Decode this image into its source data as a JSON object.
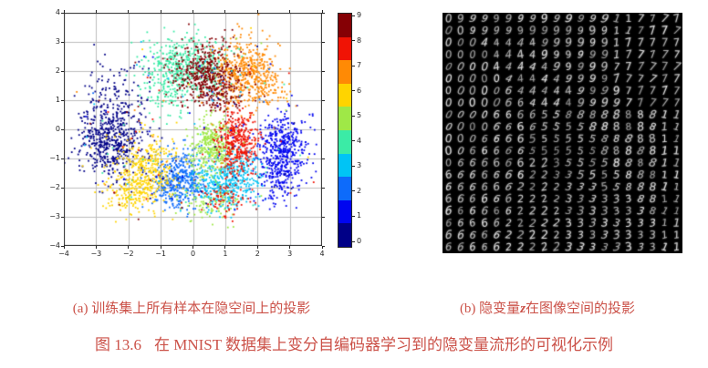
{
  "figure": {
    "caption_color": "#CB5148",
    "subcaption_a": "(a) 训练集上所有样本在隐空间上的投影",
    "subcaption_b_prefix": "(b) 隐变量",
    "subcaption_b_var": "z",
    "subcaption_b_suffix": "在图像空间的投影",
    "main_caption_label": "图 13.6",
    "main_caption_text": "在 MNIST 数据集上变分自编码器学习到的隐变量流形的可视化示例"
  },
  "chart_data": [
    {
      "type": "scatter",
      "title": "",
      "xlabel": "",
      "ylabel": "",
      "xlim": [
        -4,
        4
      ],
      "ylim": [
        -4,
        4
      ],
      "grid": true,
      "grid_color": "#bcbcbc",
      "spine_color": "#262626",
      "xticks": [
        "−4",
        "−3",
        "−2",
        "−1",
        "0",
        "1",
        "2",
        "3",
        "4"
      ],
      "yticks": [
        "−4",
        "−3",
        "−2",
        "−1",
        "0",
        "1",
        "2",
        "3",
        "4"
      ],
      "point_size": 1.8,
      "salt_fraction": 0.05,
      "palette": [
        "#000087",
        "#0005F0",
        "#0D6BFB",
        "#00C4F5",
        "#3BEBA6",
        "#9FE847",
        "#FFD400",
        "#FF8A05",
        "#F01305",
        "#850005"
      ],
      "colorbar": {
        "ticks": [
          "0",
          "1",
          "2",
          "3",
          "4",
          "5",
          "6",
          "7",
          "8",
          "9"
        ],
        "orientation": "vertical",
        "position": "right"
      },
      "classes": [
        {
          "label": "0",
          "color_index": 0,
          "clusters": [
            {
              "cx": -2.55,
              "cy": -0.45,
              "sx": 0.5,
              "sy": 0.6,
              "n": 480
            },
            {
              "cx": -2.4,
              "cy": 1.0,
              "sx": 0.5,
              "sy": 0.65,
              "n": 150
            }
          ]
        },
        {
          "label": "1",
          "color_index": 1,
          "clusters": [
            {
              "cx": 2.8,
              "cy": -0.65,
              "sx": 0.38,
              "sy": 0.6,
              "n": 420
            },
            {
              "cx": 2.6,
              "cy": -1.8,
              "sx": 0.35,
              "sy": 0.45,
              "n": 120
            }
          ]
        },
        {
          "label": "2",
          "color_index": 2,
          "clusters": [
            {
              "cx": -0.45,
              "cy": -1.75,
              "sx": 0.42,
              "sy": 0.5,
              "n": 430
            }
          ]
        },
        {
          "label": "3",
          "color_index": 3,
          "clusters": [
            {
              "cx": 0.95,
              "cy": -1.8,
              "sx": 0.5,
              "sy": 0.45,
              "n": 380
            },
            {
              "cx": 1.6,
              "cy": -1.3,
              "sx": 0.3,
              "sy": 0.4,
              "n": 80
            }
          ]
        },
        {
          "label": "4",
          "color_index": 4,
          "clusters": [
            {
              "cx": -0.2,
              "cy": 2.1,
              "sx": 0.65,
              "sy": 0.5,
              "n": 450
            },
            {
              "cx": -0.7,
              "cy": 1.2,
              "sx": 0.4,
              "sy": 0.4,
              "n": 90
            }
          ]
        },
        {
          "label": "5",
          "color_index": 5,
          "clusters": [
            {
              "cx": 0.55,
              "cy": -0.55,
              "sx": 0.35,
              "sy": 0.5,
              "n": 320
            },
            {
              "cx": 0.45,
              "cy": -2.6,
              "sx": 0.5,
              "sy": 0.3,
              "n": 90
            }
          ]
        },
        {
          "label": "6",
          "color_index": 6,
          "clusters": [
            {
              "cx": -1.5,
              "cy": -1.5,
              "sx": 0.45,
              "sy": 0.6,
              "n": 400
            },
            {
              "cx": -2.0,
              "cy": -2.2,
              "sx": 0.4,
              "sy": 0.35,
              "n": 90
            }
          ]
        },
        {
          "label": "7",
          "color_index": 7,
          "clusters": [
            {
              "cx": 1.6,
              "cy": 2.0,
              "sx": 0.5,
              "sy": 0.55,
              "n": 460
            },
            {
              "cx": 2.3,
              "cy": 1.3,
              "sx": 0.35,
              "sy": 0.4,
              "n": 70
            }
          ]
        },
        {
          "label": "8",
          "color_index": 8,
          "clusters": [
            {
              "cx": 1.35,
              "cy": -0.5,
              "sx": 0.3,
              "sy": 0.55,
              "n": 380
            },
            {
              "cx": 0.95,
              "cy": -2.4,
              "sx": 0.35,
              "sy": 0.3,
              "n": 70
            }
          ]
        },
        {
          "label": "9",
          "color_index": 9,
          "clusters": [
            {
              "cx": 0.35,
              "cy": 1.85,
              "sx": 0.5,
              "sy": 0.5,
              "n": 430
            },
            {
              "cx": 0.9,
              "cy": 1.1,
              "sx": 0.35,
              "sy": 0.35,
              "n": 90
            }
          ]
        }
      ]
    },
    {
      "type": "heatmap",
      "description": "20x20 grid of generated MNIST digit images (latent manifold sweep)",
      "background": "#000000",
      "digit_color": "#e8e8e8",
      "rows": [
        "09999999999999117777",
        "00999999999999117777",
        "00044444999999177777",
        "00004444999999177777",
        "00004444499999777777",
        "00000444449999777777",
        "00000644444999977777",
        "00000664444999977777",
        "00006666558888888811",
        "00006666555588888811",
        "00066665555558888811",
        "00666665555558888811",
        "06666662235555888811",
        "66666662233555588811",
        "66666622223335588811",
        "66666622223333338811",
        "66666622223333333811",
        "66666222223333333311",
        "66666222223333333311",
        "66666222223333333311"
      ]
    }
  ]
}
